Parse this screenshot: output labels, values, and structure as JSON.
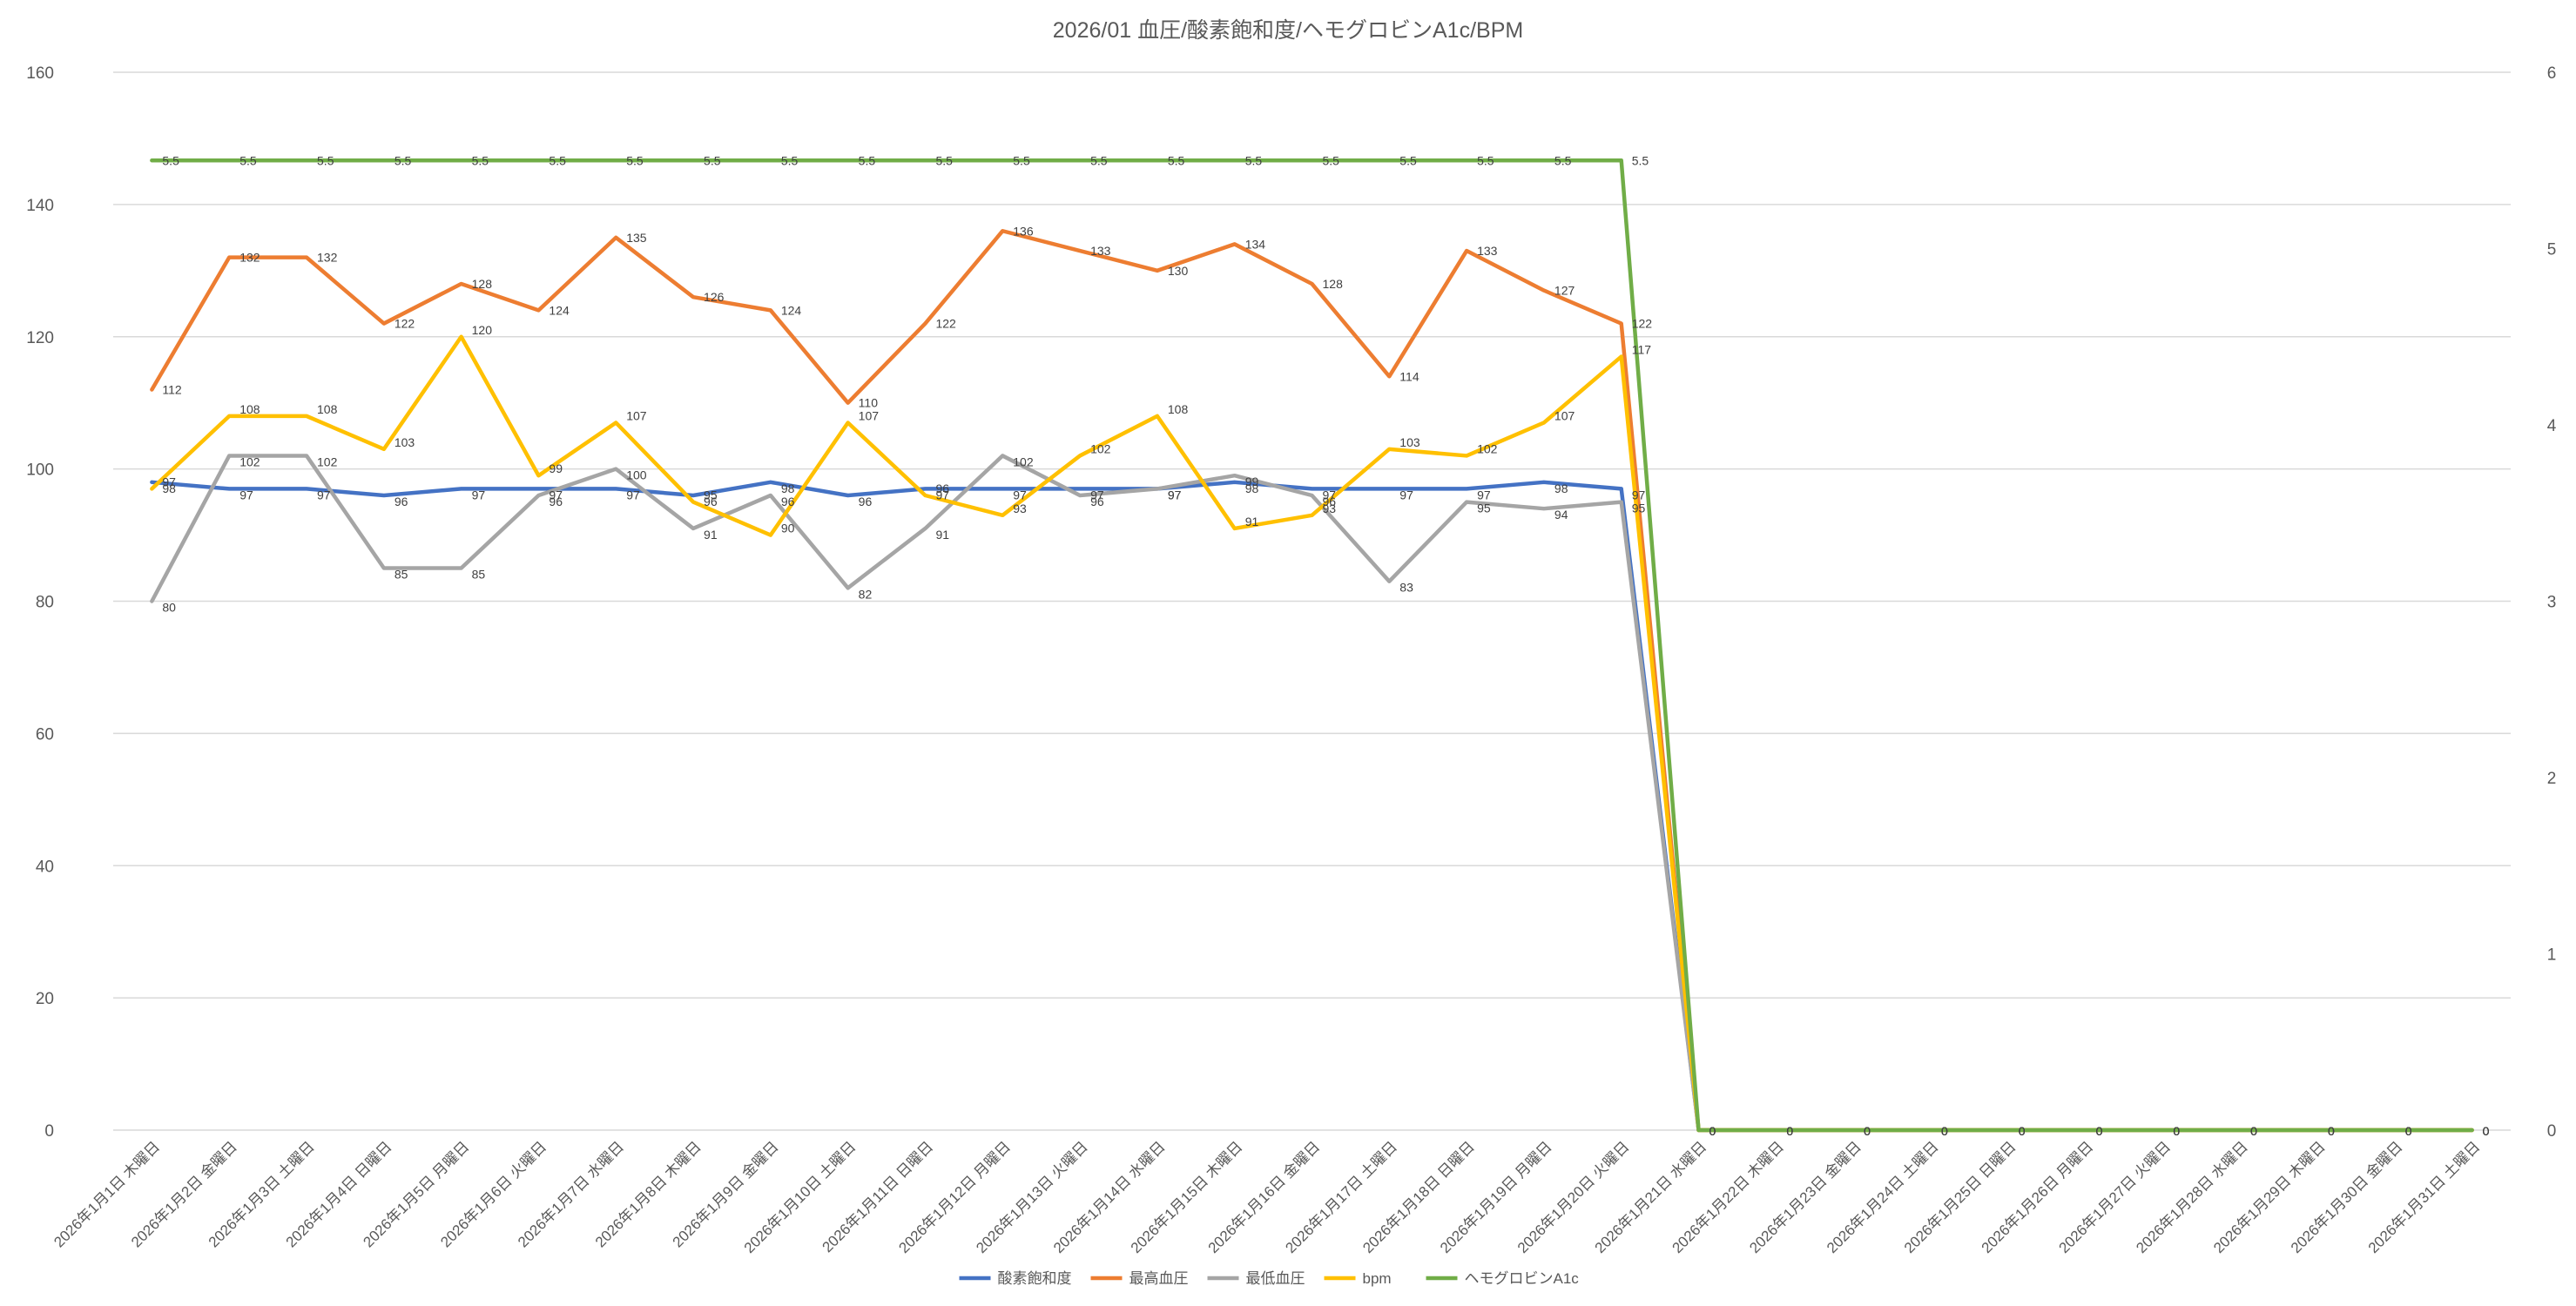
{
  "chart_data": {
    "type": "line",
    "title": "2026/01 血圧/酸素飽和度/ヘモグロビンA1c/BPM",
    "x": [
      "2026年1月1日 木曜日",
      "2026年1月2日 金曜日",
      "2026年1月3日 土曜日",
      "2026年1月4日 日曜日",
      "2026年1月5日 月曜日",
      "2026年1月6日 火曜日",
      "2026年1月7日 水曜日",
      "2026年1月8日 木曜日",
      "2026年1月9日 金曜日",
      "2026年1月10日 土曜日",
      "2026年1月11日 日曜日",
      "2026年1月12日 月曜日",
      "2026年1月13日 火曜日",
      "2026年1月14日 水曜日",
      "2026年1月15日 木曜日",
      "2026年1月16日 金曜日",
      "2026年1月17日 土曜日",
      "2026年1月18日 日曜日",
      "2026年1月19日 月曜日",
      "2026年1月20日 火曜日",
      "2026年1月21日 水曜日",
      "2026年1月22日 木曜日",
      "2026年1月23日 金曜日",
      "2026年1月24日 土曜日",
      "2026年1月25日 日曜日",
      "2026年1月26日 月曜日",
      "2026年1月27日 火曜日",
      "2026年1月28日 水曜日",
      "2026年1月29日 木曜日",
      "2026年1月30日 金曜日",
      "2026年1月31日 土曜日"
    ],
    "y_left": {
      "min": 0,
      "max": 160,
      "ticks": [
        0,
        20,
        40,
        60,
        80,
        100,
        120,
        140,
        160
      ]
    },
    "y_right": {
      "min": 0,
      "max": 6,
      "ticks": [
        0,
        1,
        2,
        3,
        4,
        5,
        6
      ]
    },
    "grid": true,
    "legend_position": "bottom",
    "series": [
      {
        "name": "酸素飽和度",
        "color": "#4472c4",
        "axis": "left",
        "label_pos": "right-below",
        "values": [
          98,
          97,
          97,
          96,
          97,
          97,
          97,
          96,
          98,
          96,
          97,
          97,
          97,
          97,
          98,
          97,
          97,
          97,
          98,
          97,
          0,
          0,
          0,
          0,
          0,
          0,
          0,
          0,
          0,
          0,
          0
        ]
      },
      {
        "name": "最高血圧",
        "color": "#ed7d31",
        "axis": "left",
        "label_pos": "right",
        "values": [
          112,
          132,
          132,
          122,
          128,
          124,
          135,
          126,
          124,
          110,
          122,
          136,
          133,
          130,
          134,
          128,
          114,
          133,
          127,
          122,
          0,
          0,
          0,
          0,
          0,
          0,
          0,
          0,
          0,
          0,
          0
        ]
      },
      {
        "name": "最低血圧",
        "color": "#a5a5a5",
        "axis": "left",
        "label_pos": "right-below",
        "values": [
          80,
          102,
          102,
          85,
          85,
          96,
          100,
          91,
          96,
          82,
          91,
          102,
          96,
          97,
          99,
          96,
          83,
          95,
          94,
          95,
          0,
          0,
          0,
          0,
          0,
          0,
          0,
          0,
          0,
          0,
          0
        ]
      },
      {
        "name": "bpm",
        "color": "#ffc000",
        "axis": "left",
        "label_pos": "right-above",
        "values": [
          97,
          108,
          108,
          103,
          120,
          99,
          107,
          95,
          90,
          107,
          96,
          93,
          102,
          108,
          91,
          93,
          103,
          102,
          107,
          117,
          0,
          0,
          0,
          0,
          0,
          0,
          0,
          0,
          0,
          0,
          0
        ]
      },
      {
        "name": "ヘモグロビンA1c",
        "color": "#70ad47",
        "axis": "right",
        "label_pos": "right",
        "values": [
          5.5,
          5.5,
          5.5,
          5.5,
          5.5,
          5.5,
          5.5,
          5.5,
          5.5,
          5.5,
          5.5,
          5.5,
          5.5,
          5.5,
          5.5,
          5.5,
          5.5,
          5.5,
          5.5,
          5.5,
          0,
          0,
          0,
          0,
          0,
          0,
          0,
          0,
          0,
          0,
          0
        ]
      }
    ]
  }
}
